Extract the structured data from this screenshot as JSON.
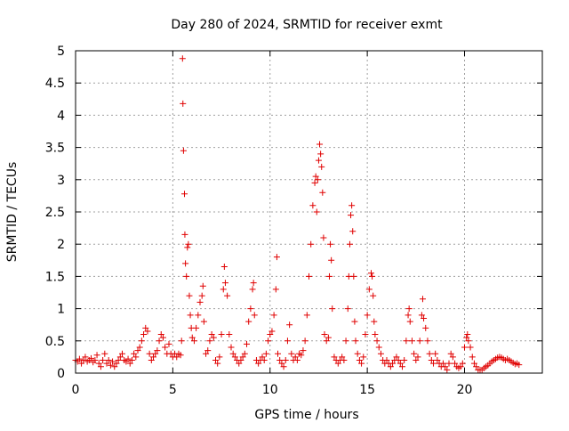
{
  "chart_data": {
    "type": "scatter",
    "title": "Day 280 of 2024, SRMTID for receiver exmt",
    "xlabel": "GPS time / hours",
    "ylabel": "SRMTID / TECUs",
    "xlim": [
      0,
      24
    ],
    "ylim": [
      0,
      5
    ],
    "x_ticks": [
      {
        "value": 0,
        "label": "0"
      },
      {
        "value": 5,
        "label": "5"
      },
      {
        "value": 10,
        "label": "10"
      },
      {
        "value": 15,
        "label": "15"
      },
      {
        "value": 20,
        "label": "20"
      }
    ],
    "y_ticks": [
      {
        "value": 0,
        "label": "0"
      },
      {
        "value": 0.5,
        "label": "0.5"
      },
      {
        "value": 1,
        "label": "1"
      },
      {
        "value": 1.5,
        "label": "1.5"
      },
      {
        "value": 2,
        "label": "2"
      },
      {
        "value": 2.5,
        "label": "2.5"
      },
      {
        "value": 3,
        "label": "3"
      },
      {
        "value": 3.5,
        "label": "3.5"
      },
      {
        "value": 4,
        "label": "4"
      },
      {
        "value": 4.5,
        "label": "4.5"
      },
      {
        "value": 5,
        "label": "5"
      }
    ],
    "grid": true,
    "marker": "+",
    "colors": {
      "series": "#e00000",
      "grid": "#a0a0a0",
      "axis": "#000000"
    },
    "series": [
      {
        "name": "SRMTID",
        "points": [
          [
            0.0,
            0.2
          ],
          [
            0.1,
            0.18
          ],
          [
            0.2,
            0.22
          ],
          [
            0.3,
            0.15
          ],
          [
            0.4,
            0.2
          ],
          [
            0.5,
            0.25
          ],
          [
            0.6,
            0.18
          ],
          [
            0.7,
            0.2
          ],
          [
            0.8,
            0.23
          ],
          [
            0.9,
            0.17
          ],
          [
            1.0,
            0.2
          ],
          [
            1.1,
            0.28
          ],
          [
            1.2,
            0.15
          ],
          [
            1.3,
            0.1
          ],
          [
            1.4,
            0.2
          ],
          [
            1.5,
            0.3
          ],
          [
            1.6,
            0.15
          ],
          [
            1.7,
            0.2
          ],
          [
            1.8,
            0.12
          ],
          [
            1.9,
            0.18
          ],
          [
            2.0,
            0.1
          ],
          [
            2.1,
            0.15
          ],
          [
            2.2,
            0.2
          ],
          [
            2.3,
            0.25
          ],
          [
            2.4,
            0.3
          ],
          [
            2.5,
            0.2
          ],
          [
            2.6,
            0.18
          ],
          [
            2.7,
            0.22
          ],
          [
            2.8,
            0.15
          ],
          [
            2.9,
            0.2
          ],
          [
            3.0,
            0.3
          ],
          [
            3.1,
            0.25
          ],
          [
            3.2,
            0.35
          ],
          [
            3.3,
            0.4
          ],
          [
            3.4,
            0.5
          ],
          [
            3.5,
            0.6
          ],
          [
            3.6,
            0.7
          ],
          [
            3.7,
            0.65
          ],
          [
            3.8,
            0.3
          ],
          [
            3.9,
            0.2
          ],
          [
            4.0,
            0.25
          ],
          [
            4.1,
            0.3
          ],
          [
            4.2,
            0.35
          ],
          [
            4.3,
            0.5
          ],
          [
            4.4,
            0.6
          ],
          [
            4.5,
            0.55
          ],
          [
            4.6,
            0.4
          ],
          [
            4.7,
            0.3
          ],
          [
            4.8,
            0.45
          ],
          [
            4.9,
            0.3
          ],
          [
            5.0,
            0.25
          ],
          [
            5.1,
            0.3
          ],
          [
            5.2,
            0.25
          ],
          [
            5.3,
            0.3
          ],
          [
            5.4,
            0.28
          ],
          [
            5.45,
            0.5
          ],
          [
            5.5,
            4.88
          ],
          [
            5.52,
            4.18
          ],
          [
            5.55,
            3.45
          ],
          [
            5.6,
            2.78
          ],
          [
            5.62,
            2.15
          ],
          [
            5.65,
            1.7
          ],
          [
            5.7,
            1.5
          ],
          [
            5.75,
            1.95
          ],
          [
            5.8,
            2.0
          ],
          [
            5.85,
            1.2
          ],
          [
            5.9,
            0.9
          ],
          [
            5.95,
            0.7
          ],
          [
            6.0,
            0.55
          ],
          [
            6.1,
            0.5
          ],
          [
            6.2,
            0.7
          ],
          [
            6.3,
            0.9
          ],
          [
            6.4,
            1.1
          ],
          [
            6.5,
            1.2
          ],
          [
            6.55,
            1.35
          ],
          [
            6.6,
            0.8
          ],
          [
            6.7,
            0.3
          ],
          [
            6.8,
            0.35
          ],
          [
            6.9,
            0.5
          ],
          [
            7.0,
            0.6
          ],
          [
            7.1,
            0.55
          ],
          [
            7.2,
            0.2
          ],
          [
            7.3,
            0.15
          ],
          [
            7.4,
            0.25
          ],
          [
            7.5,
            0.6
          ],
          [
            7.6,
            1.3
          ],
          [
            7.65,
            1.65
          ],
          [
            7.7,
            1.4
          ],
          [
            7.8,
            1.2
          ],
          [
            7.9,
            0.6
          ],
          [
            8.0,
            0.4
          ],
          [
            8.1,
            0.3
          ],
          [
            8.2,
            0.25
          ],
          [
            8.3,
            0.2
          ],
          [
            8.4,
            0.15
          ],
          [
            8.5,
            0.2
          ],
          [
            8.6,
            0.25
          ],
          [
            8.7,
            0.3
          ],
          [
            8.8,
            0.45
          ],
          [
            8.9,
            0.8
          ],
          [
            9.0,
            1.0
          ],
          [
            9.1,
            1.3
          ],
          [
            9.15,
            1.4
          ],
          [
            9.2,
            0.9
          ],
          [
            9.3,
            0.2
          ],
          [
            9.4,
            0.15
          ],
          [
            9.5,
            0.2
          ],
          [
            9.6,
            0.25
          ],
          [
            9.7,
            0.2
          ],
          [
            9.8,
            0.3
          ],
          [
            9.9,
            0.5
          ],
          [
            10.0,
            0.6
          ],
          [
            10.1,
            0.65
          ],
          [
            10.2,
            0.9
          ],
          [
            10.3,
            1.3
          ],
          [
            10.35,
            1.8
          ],
          [
            10.4,
            0.3
          ],
          [
            10.5,
            0.2
          ],
          [
            10.6,
            0.15
          ],
          [
            10.7,
            0.1
          ],
          [
            10.8,
            0.2
          ],
          [
            10.9,
            0.5
          ],
          [
            11.0,
            0.75
          ],
          [
            11.1,
            0.3
          ],
          [
            11.2,
            0.2
          ],
          [
            11.3,
            0.25
          ],
          [
            11.4,
            0.2
          ],
          [
            11.5,
            0.3
          ],
          [
            11.6,
            0.28
          ],
          [
            11.7,
            0.35
          ],
          [
            11.8,
            0.5
          ],
          [
            11.9,
            0.9
          ],
          [
            12.0,
            1.5
          ],
          [
            12.1,
            2.0
          ],
          [
            12.2,
            2.6
          ],
          [
            12.3,
            2.95
          ],
          [
            12.35,
            3.05
          ],
          [
            12.4,
            2.5
          ],
          [
            12.45,
            3.0
          ],
          [
            12.5,
            3.3
          ],
          [
            12.55,
            3.55
          ],
          [
            12.6,
            3.4
          ],
          [
            12.65,
            3.2
          ],
          [
            12.7,
            2.8
          ],
          [
            12.75,
            2.1
          ],
          [
            12.8,
            0.6
          ],
          [
            12.9,
            0.5
          ],
          [
            13.0,
            0.55
          ],
          [
            13.05,
            1.5
          ],
          [
            13.1,
            2.0
          ],
          [
            13.15,
            1.75
          ],
          [
            13.2,
            1.0
          ],
          [
            13.3,
            0.25
          ],
          [
            13.4,
            0.2
          ],
          [
            13.5,
            0.15
          ],
          [
            13.6,
            0.2
          ],
          [
            13.7,
            0.25
          ],
          [
            13.8,
            0.2
          ],
          [
            13.9,
            0.5
          ],
          [
            14.0,
            1.0
          ],
          [
            14.05,
            1.5
          ],
          [
            14.1,
            2.0
          ],
          [
            14.15,
            2.45
          ],
          [
            14.2,
            2.6
          ],
          [
            14.25,
            2.2
          ],
          [
            14.3,
            1.5
          ],
          [
            14.35,
            0.8
          ],
          [
            14.4,
            0.5
          ],
          [
            14.5,
            0.3
          ],
          [
            14.6,
            0.2
          ],
          [
            14.7,
            0.15
          ],
          [
            14.8,
            0.25
          ],
          [
            14.9,
            0.6
          ],
          [
            15.0,
            0.9
          ],
          [
            15.1,
            1.3
          ],
          [
            15.2,
            1.55
          ],
          [
            15.25,
            1.5
          ],
          [
            15.3,
            1.2
          ],
          [
            15.35,
            0.8
          ],
          [
            15.4,
            0.6
          ],
          [
            15.5,
            0.5
          ],
          [
            15.6,
            0.4
          ],
          [
            15.7,
            0.3
          ],
          [
            15.8,
            0.2
          ],
          [
            15.9,
            0.15
          ],
          [
            16.0,
            0.2
          ],
          [
            16.1,
            0.15
          ],
          [
            16.2,
            0.1
          ],
          [
            16.3,
            0.15
          ],
          [
            16.4,
            0.2
          ],
          [
            16.5,
            0.25
          ],
          [
            16.6,
            0.2
          ],
          [
            16.7,
            0.15
          ],
          [
            16.8,
            0.1
          ],
          [
            16.9,
            0.2
          ],
          [
            17.0,
            0.5
          ],
          [
            17.1,
            0.9
          ],
          [
            17.15,
            1.0
          ],
          [
            17.2,
            0.8
          ],
          [
            17.3,
            0.5
          ],
          [
            17.4,
            0.3
          ],
          [
            17.5,
            0.2
          ],
          [
            17.6,
            0.25
          ],
          [
            17.7,
            0.5
          ],
          [
            17.8,
            0.9
          ],
          [
            17.85,
            1.15
          ],
          [
            17.9,
            0.85
          ],
          [
            18.0,
            0.7
          ],
          [
            18.1,
            0.5
          ],
          [
            18.2,
            0.3
          ],
          [
            18.3,
            0.2
          ],
          [
            18.4,
            0.15
          ],
          [
            18.5,
            0.3
          ],
          [
            18.6,
            0.2
          ],
          [
            18.7,
            0.15
          ],
          [
            18.8,
            0.1
          ],
          [
            18.9,
            0.15
          ],
          [
            19.0,
            0.1
          ],
          [
            19.1,
            0.05
          ],
          [
            19.2,
            0.15
          ],
          [
            19.3,
            0.3
          ],
          [
            19.4,
            0.25
          ],
          [
            19.5,
            0.15
          ],
          [
            19.6,
            0.1
          ],
          [
            19.7,
            0.08
          ],
          [
            19.8,
            0.1
          ],
          [
            19.9,
            0.15
          ],
          [
            20.0,
            0.4
          ],
          [
            20.1,
            0.55
          ],
          [
            20.15,
            0.6
          ],
          [
            20.2,
            0.5
          ],
          [
            20.3,
            0.4
          ],
          [
            20.4,
            0.25
          ],
          [
            20.5,
            0.15
          ],
          [
            20.6,
            0.1
          ],
          [
            20.7,
            0.05
          ],
          [
            20.8,
            0.05
          ],
          [
            20.9,
            0.05
          ],
          [
            21.0,
            0.08
          ],
          [
            21.1,
            0.1
          ],
          [
            21.2,
            0.12
          ],
          [
            21.3,
            0.15
          ],
          [
            21.4,
            0.18
          ],
          [
            21.5,
            0.2
          ],
          [
            21.6,
            0.22
          ],
          [
            21.7,
            0.24
          ],
          [
            21.8,
            0.25
          ],
          [
            21.9,
            0.24
          ],
          [
            22.0,
            0.22
          ],
          [
            22.1,
            0.2
          ],
          [
            22.2,
            0.22
          ],
          [
            22.3,
            0.2
          ],
          [
            22.4,
            0.18
          ],
          [
            22.5,
            0.16
          ],
          [
            22.6,
            0.14
          ],
          [
            22.7,
            0.15
          ],
          [
            22.8,
            0.13
          ]
        ]
      }
    ]
  }
}
